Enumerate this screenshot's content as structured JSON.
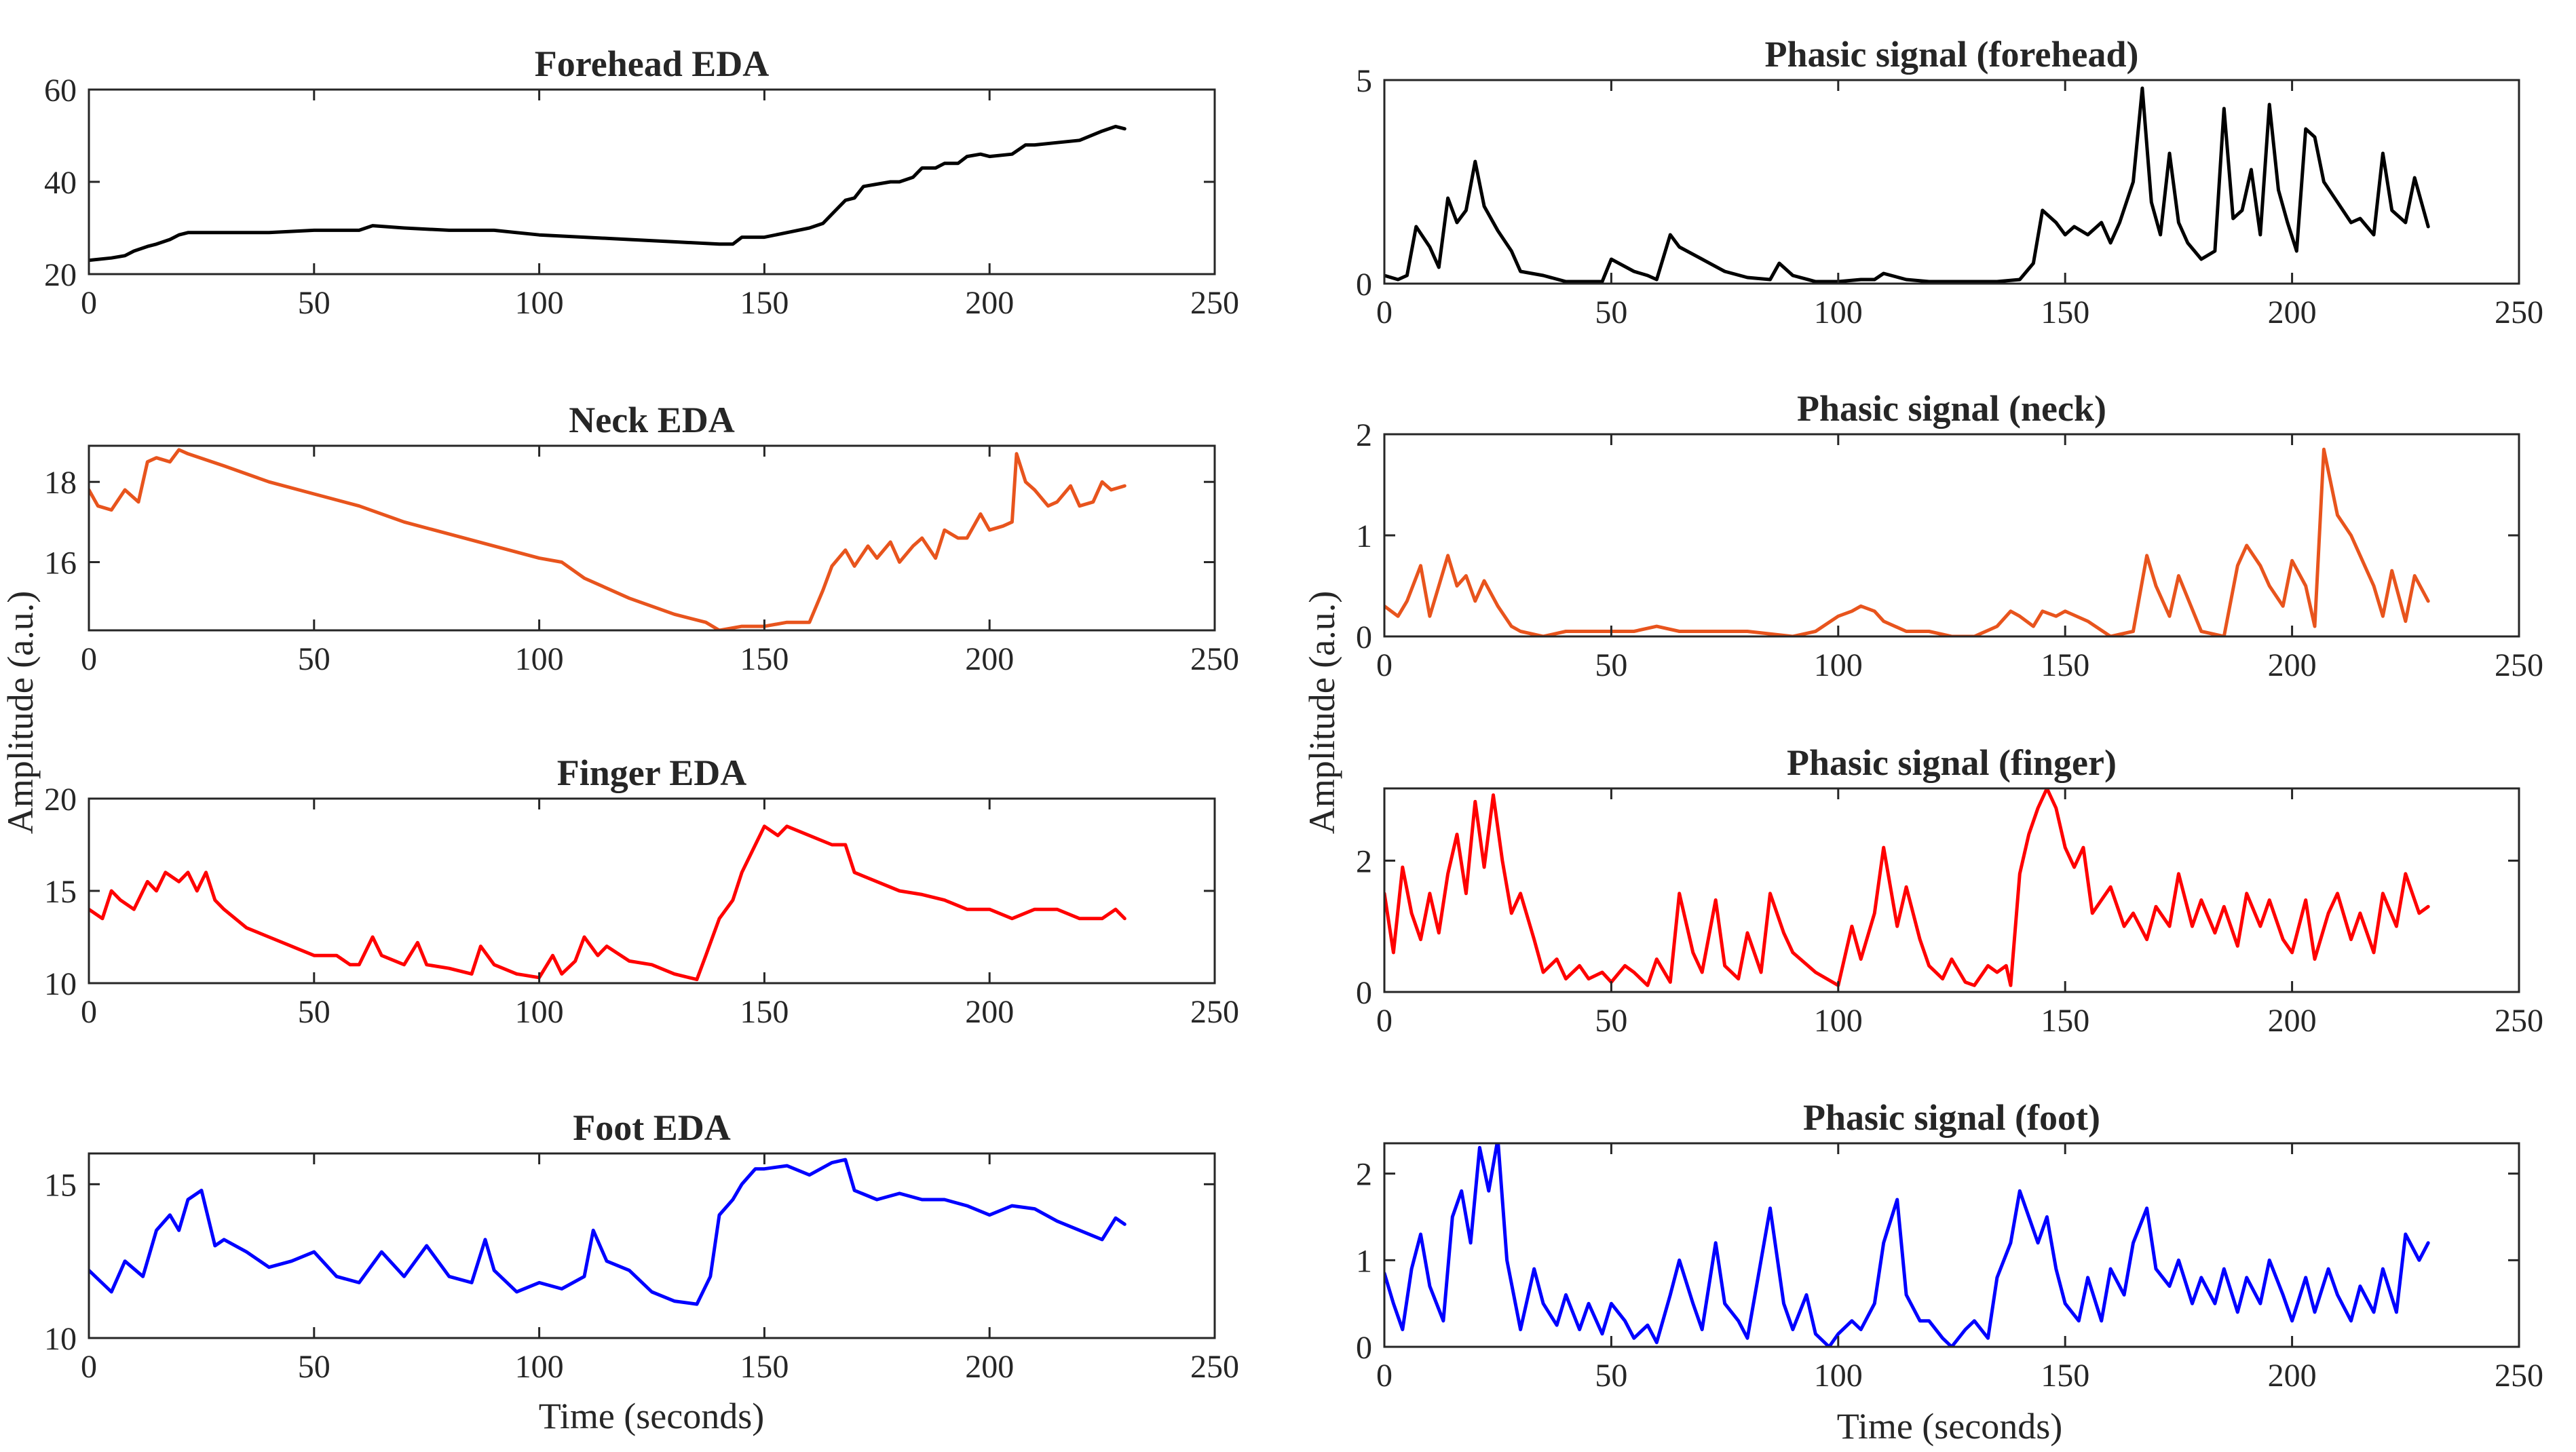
{
  "figure": {
    "ylabel_left": "Amplitude (a.u.)",
    "ylabel_right": "Amplitude (a.u.)",
    "xlabel_left": "Time (seconds)",
    "xlabel_right": "Time (seconds)"
  },
  "chart_data": [
    {
      "type": "line",
      "title": "Forehead EDA",
      "xlabel": "",
      "ylabel": "",
      "xlim": [
        0,
        250
      ],
      "ylim": [
        20,
        60
      ],
      "xticks": [
        0,
        50,
        100,
        150,
        200,
        250
      ],
      "yticks": [
        20,
        40,
        60
      ],
      "grid": false,
      "color": "#000000",
      "x": [
        0,
        5,
        8,
        10,
        13,
        15,
        18,
        20,
        22,
        30,
        40,
        50,
        55,
        60,
        63,
        70,
        80,
        90,
        100,
        110,
        120,
        130,
        140,
        143,
        145,
        150,
        155,
        160,
        163,
        165,
        168,
        170,
        172,
        175,
        178,
        180,
        183,
        185,
        188,
        190,
        193,
        195,
        198,
        200,
        205,
        208,
        210,
        215,
        220,
        225,
        228,
        230
      ],
      "y": [
        23,
        23.5,
        24,
        25,
        26,
        26.5,
        27.5,
        28.5,
        29,
        29,
        29,
        29.5,
        29.5,
        29.5,
        30.5,
        30,
        29.5,
        29.5,
        28.5,
        28,
        27.5,
        27,
        26.5,
        26.5,
        28,
        28,
        29,
        30,
        31,
        33,
        36,
        36.5,
        39,
        39.5,
        40,
        40,
        41,
        43,
        43,
        44,
        44,
        45.5,
        46,
        45.5,
        46,
        48,
        48,
        48.5,
        49,
        51,
        52,
        51.5
      ]
    },
    {
      "type": "line",
      "title": "Neck EDA",
      "xlabel": "",
      "ylabel": "",
      "xlim": [
        0,
        250
      ],
      "ylim": [
        14.3,
        18.9
      ],
      "xticks": [
        0,
        50,
        100,
        150,
        200,
        250
      ],
      "yticks": [
        16,
        18
      ],
      "grid": false,
      "color": "#e8541d",
      "x": [
        0,
        2,
        5,
        8,
        11,
        13,
        15,
        18,
        20,
        22,
        30,
        40,
        50,
        60,
        70,
        80,
        90,
        100,
        105,
        110,
        120,
        130,
        137,
        140,
        145,
        150,
        155,
        160,
        163,
        165,
        168,
        170,
        173,
        175,
        178,
        180,
        183,
        185,
        188,
        190,
        193,
        195,
        198,
        200,
        203,
        205,
        206,
        208,
        210,
        213,
        215,
        218,
        220,
        223,
        225,
        227,
        230
      ],
      "y": [
        17.8,
        17.4,
        17.3,
        17.8,
        17.5,
        18.5,
        18.6,
        18.5,
        18.8,
        18.7,
        18.4,
        18,
        17.7,
        17.4,
        17,
        16.7,
        16.4,
        16.1,
        16,
        15.6,
        15.1,
        14.7,
        14.5,
        14.3,
        14.4,
        14.4,
        14.5,
        14.5,
        15.3,
        15.9,
        16.3,
        15.9,
        16.4,
        16.1,
        16.5,
        16,
        16.4,
        16.6,
        16.1,
        16.8,
        16.6,
        16.6,
        17.2,
        16.8,
        16.9,
        17.0,
        18.7,
        18.0,
        17.8,
        17.4,
        17.5,
        17.9,
        17.4,
        17.5,
        18.0,
        17.8,
        17.9
      ]
    },
    {
      "type": "line",
      "title": "Finger EDA",
      "xlabel": "",
      "ylabel": "",
      "xlim": [
        0,
        250
      ],
      "ylim": [
        10,
        20
      ],
      "xticks": [
        0,
        50,
        100,
        150,
        200,
        250
      ],
      "yticks": [
        10,
        15,
        20
      ],
      "grid": false,
      "color": "#ff0000",
      "x": [
        0,
        3,
        5,
        7,
        10,
        13,
        15,
        17,
        20,
        22,
        24,
        26,
        28,
        30,
        35,
        40,
        45,
        50,
        55,
        58,
        60,
        63,
        65,
        70,
        73,
        75,
        80,
        85,
        87,
        90,
        95,
        100,
        103,
        105,
        108,
        110,
        113,
        115,
        120,
        125,
        130,
        135,
        137,
        140,
        143,
        145,
        148,
        150,
        153,
        155,
        160,
        165,
        168,
        170,
        175,
        180,
        185,
        190,
        195,
        200,
        205,
        210,
        215,
        220,
        225,
        228,
        230
      ],
      "y": [
        14,
        13.5,
        15,
        14.5,
        14,
        15.5,
        15,
        16,
        15.5,
        16,
        15,
        16,
        14.5,
        14,
        13,
        12.5,
        12,
        11.5,
        11.5,
        11,
        11,
        12.5,
        11.5,
        11,
        12.2,
        11,
        10.8,
        10.5,
        12,
        11,
        10.5,
        10.3,
        11.5,
        10.5,
        11.2,
        12.5,
        11.5,
        12,
        11.2,
        11,
        10.5,
        10.2,
        11.5,
        13.5,
        14.5,
        16,
        17.5,
        18.5,
        18,
        18.5,
        18,
        17.5,
        17.5,
        16,
        15.5,
        15,
        14.8,
        14.5,
        14,
        14,
        13.5,
        14,
        14,
        13.5,
        13.5,
        14,
        13.5
      ]
    },
    {
      "type": "line",
      "title": "Foot EDA",
      "xlabel": "Time (seconds)",
      "ylabel": "",
      "xlim": [
        0,
        250
      ],
      "ylim": [
        10,
        16
      ],
      "xticks": [
        0,
        50,
        100,
        150,
        200,
        250
      ],
      "yticks": [
        10,
        15
      ],
      "grid": false,
      "color": "#0000ff",
      "x": [
        0,
        5,
        8,
        12,
        15,
        18,
        20,
        22,
        25,
        28,
        30,
        35,
        40,
        45,
        50,
        55,
        60,
        65,
        70,
        75,
        80,
        85,
        88,
        90,
        95,
        100,
        105,
        110,
        112,
        115,
        120,
        125,
        130,
        135,
        138,
        140,
        143,
        145,
        148,
        150,
        155,
        160,
        165,
        168,
        170,
        175,
        180,
        185,
        190,
        195,
        200,
        205,
        210,
        215,
        220,
        225,
        228,
        230
      ],
      "y": [
        12.2,
        11.5,
        12.5,
        12,
        13.5,
        14,
        13.5,
        14.5,
        14.8,
        13,
        13.2,
        12.8,
        12.3,
        12.5,
        12.8,
        12,
        11.8,
        12.8,
        12,
        13,
        12,
        11.8,
        13.2,
        12.2,
        11.5,
        11.8,
        11.6,
        12,
        13.5,
        12.5,
        12.2,
        11.5,
        11.2,
        11.1,
        12,
        14,
        14.5,
        15,
        15.5,
        15.5,
        15.6,
        15.3,
        15.7,
        15.8,
        14.8,
        14.5,
        14.7,
        14.5,
        14.5,
        14.3,
        14,
        14.3,
        14.2,
        13.8,
        13.5,
        13.2,
        13.9,
        13.7
      ]
    },
    {
      "type": "line",
      "title": "Phasic signal (forehead)",
      "xlabel": "",
      "ylabel": "",
      "xlim": [
        0,
        250
      ],
      "ylim": [
        0,
        5
      ],
      "xticks": [
        0,
        50,
        100,
        150,
        200,
        250
      ],
      "yticks": [
        0,
        5
      ],
      "grid": false,
      "color": "#000000",
      "x": [
        0,
        3,
        5,
        7,
        10,
        12,
        14,
        16,
        18,
        20,
        22,
        25,
        28,
        30,
        35,
        40,
        45,
        48,
        50,
        55,
        58,
        60,
        63,
        65,
        70,
        75,
        80,
        85,
        87,
        90,
        95,
        100,
        105,
        108,
        110,
        115,
        120,
        125,
        130,
        135,
        140,
        143,
        145,
        148,
        150,
        152,
        155,
        158,
        160,
        162,
        165,
        167,
        169,
        171,
        173,
        175,
        177,
        180,
        183,
        185,
        187,
        189,
        191,
        193,
        195,
        197,
        199,
        201,
        203,
        205,
        207,
        210,
        213,
        215,
        218,
        220,
        222,
        225,
        227,
        230
      ],
      "y": [
        0.2,
        0.1,
        0.2,
        1.4,
        0.9,
        0.4,
        2.1,
        1.5,
        1.8,
        3.0,
        1.9,
        1.3,
        0.8,
        0.3,
        0.2,
        0.05,
        0.05,
        0.05,
        0.6,
        0.3,
        0.2,
        0.1,
        1.2,
        0.9,
        0.6,
        0.3,
        0.15,
        0.1,
        0.5,
        0.2,
        0.05,
        0.05,
        0.1,
        0.1,
        0.25,
        0.1,
        0.05,
        0.05,
        0.05,
        0.05,
        0.1,
        0.5,
        1.8,
        1.5,
        1.2,
        1.4,
        1.2,
        1.5,
        1.0,
        1.5,
        2.5,
        4.8,
        2.0,
        1.2,
        3.2,
        1.5,
        1.0,
        0.6,
        0.8,
        4.3,
        1.6,
        1.8,
        2.8,
        1.2,
        4.4,
        2.3,
        1.5,
        0.8,
        3.8,
        3.6,
        2.5,
        2.0,
        1.5,
        1.6,
        1.2,
        3.2,
        1.8,
        1.5,
        2.6,
        1.4
      ]
    },
    {
      "type": "line",
      "title": "Phasic signal (neck)",
      "xlabel": "",
      "ylabel": "Amplitude (a.u.)",
      "xlim": [
        0,
        250
      ],
      "ylim": [
        0,
        2
      ],
      "xticks": [
        0,
        50,
        100,
        150,
        200,
        250
      ],
      "yticks": [
        0,
        1,
        2
      ],
      "grid": false,
      "color": "#e8541d",
      "x": [
        0,
        3,
        5,
        8,
        10,
        12,
        14,
        16,
        18,
        20,
        22,
        25,
        28,
        30,
        35,
        40,
        45,
        50,
        55,
        60,
        65,
        70,
        80,
        90,
        95,
        100,
        103,
        105,
        108,
        110,
        115,
        120,
        125,
        130,
        135,
        138,
        140,
        143,
        145,
        148,
        150,
        155,
        160,
        165,
        168,
        170,
        173,
        175,
        180,
        185,
        188,
        190,
        193,
        195,
        198,
        200,
        203,
        205,
        207,
        210,
        213,
        215,
        218,
        220,
        222,
        225,
        227,
        230
      ],
      "y": [
        0.3,
        0.2,
        0.35,
        0.7,
        0.2,
        0.5,
        0.8,
        0.5,
        0.6,
        0.35,
        0.55,
        0.3,
        0.1,
        0.05,
        0.0,
        0.05,
        0.05,
        0.05,
        0.05,
        0.1,
        0.05,
        0.05,
        0.05,
        0.0,
        0.05,
        0.2,
        0.25,
        0.3,
        0.25,
        0.15,
        0.05,
        0.05,
        0.0,
        0.0,
        0.1,
        0.25,
        0.2,
        0.1,
        0.25,
        0.2,
        0.25,
        0.15,
        0.0,
        0.05,
        0.8,
        0.5,
        0.2,
        0.6,
        0.05,
        0.0,
        0.7,
        0.9,
        0.7,
        0.5,
        0.3,
        0.75,
        0.5,
        0.1,
        1.85,
        1.2,
        1.0,
        0.8,
        0.5,
        0.2,
        0.65,
        0.15,
        0.6,
        0.35
      ]
    },
    {
      "type": "line",
      "title": "Phasic signal (finger)",
      "xlabel": "",
      "ylabel": "",
      "xlim": [
        0,
        250
      ],
      "ylim": [
        0,
        3.1
      ],
      "xticks": [
        0,
        50,
        100,
        150,
        200,
        250
      ],
      "yticks": [
        0,
        2
      ],
      "grid": false,
      "color": "#ff0000",
      "x": [
        0,
        2,
        4,
        6,
        8,
        10,
        12,
        14,
        16,
        18,
        20,
        22,
        24,
        26,
        28,
        30,
        33,
        35,
        38,
        40,
        43,
        45,
        48,
        50,
        53,
        55,
        58,
        60,
        63,
        65,
        68,
        70,
        73,
        75,
        78,
        80,
        83,
        85,
        88,
        90,
        95,
        100,
        103,
        105,
        108,
        110,
        113,
        115,
        118,
        120,
        123,
        125,
        128,
        130,
        133,
        135,
        137,
        138,
        140,
        142,
        144,
        146,
        148,
        150,
        152,
        154,
        156,
        158,
        160,
        163,
        165,
        168,
        170,
        173,
        175,
        178,
        180,
        183,
        185,
        188,
        190,
        193,
        195,
        198,
        200,
        203,
        205,
        208,
        210,
        213,
        215,
        218,
        220,
        223,
        225,
        228,
        230
      ],
      "y": [
        1.5,
        0.6,
        1.9,
        1.2,
        0.8,
        1.5,
        0.9,
        1.8,
        2.4,
        1.5,
        2.9,
        1.9,
        3.0,
        2.0,
        1.2,
        1.5,
        0.8,
        0.3,
        0.5,
        0.2,
        0.4,
        0.2,
        0.3,
        0.15,
        0.4,
        0.3,
        0.1,
        0.5,
        0.15,
        1.5,
        0.6,
        0.3,
        1.4,
        0.4,
        0.2,
        0.9,
        0.3,
        1.5,
        0.9,
        0.6,
        0.3,
        0.1,
        1.0,
        0.5,
        1.2,
        2.2,
        1.0,
        1.6,
        0.8,
        0.4,
        0.2,
        0.5,
        0.15,
        0.1,
        0.4,
        0.3,
        0.4,
        0.1,
        1.8,
        2.4,
        2.8,
        3.1,
        2.8,
        2.2,
        1.9,
        2.2,
        1.2,
        1.4,
        1.6,
        1.0,
        1.2,
        0.8,
        1.3,
        1.0,
        1.8,
        1.0,
        1.4,
        0.9,
        1.3,
        0.7,
        1.5,
        1.0,
        1.4,
        0.8,
        0.6,
        1.4,
        0.5,
        1.2,
        1.5,
        0.8,
        1.2,
        0.6,
        1.5,
        1.0,
        1.8,
        1.2,
        1.3
      ]
    },
    {
      "type": "line",
      "title": "Phasic signal (foot)",
      "xlabel": "Time (seconds)",
      "ylabel": "",
      "xlim": [
        0,
        250
      ],
      "ylim": [
        0,
        2.35
      ],
      "xticks": [
        0,
        50,
        100,
        150,
        200,
        250
      ],
      "yticks": [
        0,
        1,
        2
      ],
      "grid": false,
      "color": "#0000ff",
      "x": [
        0,
        2,
        4,
        6,
        8,
        10,
        13,
        15,
        17,
        19,
        21,
        23,
        25,
        27,
        30,
        33,
        35,
        38,
        40,
        43,
        45,
        48,
        50,
        53,
        55,
        58,
        60,
        63,
        65,
        68,
        70,
        73,
        75,
        78,
        80,
        83,
        85,
        88,
        90,
        93,
        95,
        98,
        100,
        103,
        105,
        108,
        110,
        113,
        115,
        118,
        120,
        123,
        125,
        128,
        130,
        133,
        135,
        138,
        140,
        142,
        144,
        146,
        148,
        150,
        153,
        155,
        158,
        160,
        163,
        165,
        168,
        170,
        173,
        175,
        178,
        180,
        183,
        185,
        188,
        190,
        193,
        195,
        198,
        200,
        203,
        205,
        208,
        210,
        213,
        215,
        218,
        220,
        223,
        225,
        228,
        230
      ],
      "y": [
        0.85,
        0.5,
        0.2,
        0.9,
        1.3,
        0.7,
        0.3,
        1.5,
        1.8,
        1.2,
        2.3,
        1.8,
        2.4,
        1.0,
        0.2,
        0.9,
        0.5,
        0.25,
        0.6,
        0.2,
        0.5,
        0.15,
        0.5,
        0.3,
        0.1,
        0.25,
        0.05,
        0.6,
        1.0,
        0.5,
        0.2,
        1.2,
        0.5,
        0.3,
        0.1,
        1.0,
        1.6,
        0.5,
        0.2,
        0.6,
        0.15,
        0.0,
        0.15,
        0.3,
        0.2,
        0.5,
        1.2,
        1.7,
        0.6,
        0.3,
        0.3,
        0.1,
        0.0,
        0.2,
        0.3,
        0.1,
        0.8,
        1.2,
        1.8,
        1.5,
        1.2,
        1.5,
        0.9,
        0.5,
        0.3,
        0.8,
        0.3,
        0.9,
        0.6,
        1.2,
        1.6,
        0.9,
        0.7,
        1.0,
        0.5,
        0.8,
        0.5,
        0.9,
        0.4,
        0.8,
        0.5,
        1.0,
        0.6,
        0.3,
        0.8,
        0.4,
        0.9,
        0.6,
        0.3,
        0.7,
        0.4,
        0.9,
        0.4,
        1.3,
        1.0,
        1.2
      ]
    }
  ]
}
